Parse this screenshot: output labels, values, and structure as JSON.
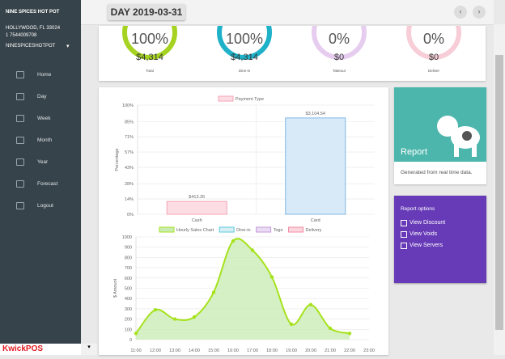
{
  "sidebar": {
    "store_name": "NINE SPICES HOT POT",
    "address": "HOLLYWOOD, FL 33024",
    "phone": "1 7544009708",
    "account": "NINESPICESHOTPOT",
    "nav": [
      "Home",
      "Day",
      "Week",
      "Month",
      "Year",
      "Forecast",
      "Logout"
    ],
    "logo": "KwickPOS"
  },
  "header": {
    "title": "DAY 2019-03-31"
  },
  "gauges": [
    {
      "percent": "100%",
      "amount": "$4,314",
      "label": "Total",
      "color": "#a6d321"
    },
    {
      "percent": "100%",
      "amount": "$4,314",
      "label": "Dine-in",
      "color": "#1fb1c8"
    },
    {
      "percent": "0%",
      "amount": "$0",
      "label": "Takeout",
      "color": "#e6cdef"
    },
    {
      "percent": "0%",
      "amount": "$0",
      "label": "Deliver",
      "color": "#f7cdd8"
    }
  ],
  "report_card": {
    "title": "Report",
    "text": "Generated from real time data."
  },
  "report_options": {
    "title": "Report options",
    "options": [
      "View Discount",
      "View Voids",
      "View Servers"
    ]
  },
  "charts": [
    {
      "type": "bar",
      "legend": "Payment Type",
      "y_label": "Percentage",
      "categories": [
        "Cash",
        "Card"
      ],
      "values": [
        11.75,
        88.25
      ],
      "amounts": [
        "$413.35",
        "$3,104.54"
      ],
      "fill": "#fcdde4",
      "color": "#f4a3b5",
      "bar_fills": [
        "#fcdde4",
        "#d8e9f8"
      ],
      "bar_colors": [
        "#f4a3b5",
        "#7fb8e6"
      ],
      "ylim": [
        0,
        100
      ],
      "yticks": [
        {
          "value": 0,
          "label": "0%"
        },
        {
          "value": 14,
          "label": "14%"
        },
        {
          "value": 28,
          "label": "28%"
        },
        {
          "value": 43,
          "label": "43%"
        },
        {
          "value": 57,
          "label": "57%"
        },
        {
          "value": 71,
          "label": "71%"
        },
        {
          "value": 85,
          "label": "85%"
        },
        {
          "value": 100,
          "label": "100%"
        }
      ],
      "grid": true
    },
    {
      "type": "line",
      "y_label": "$ Amount",
      "categories": [
        "11:00",
        "12:00",
        "13:00",
        "14:00",
        "15:00",
        "16:00",
        "17:00",
        "18:00",
        "19:00",
        "20:00",
        "21:00",
        "22:00",
        "23:00"
      ],
      "series": [
        {
          "name": "Hourly Sales Chart",
          "color": "#a6e21c",
          "fill": "#c9ecb5",
          "values": [
            60,
            290,
            200,
            220,
            460,
            960,
            870,
            610,
            150,
            340,
            110,
            60,
            null
          ]
        },
        {
          "name": "Dine-in",
          "color": "#5bc8dc",
          "fill": "#d5eff5",
          "values": []
        },
        {
          "name": "Togo",
          "color": "#c79ade",
          "fill": "#eadcf3",
          "values": []
        },
        {
          "name": "Delivery",
          "color": "#f48aa3",
          "fill": "#fbd6df",
          "values": []
        }
      ],
      "ylim": [
        0,
        1000
      ],
      "yticks": [
        0,
        100,
        200,
        300,
        400,
        500,
        600,
        700,
        800,
        900,
        1000
      ],
      "grid": true
    }
  ]
}
